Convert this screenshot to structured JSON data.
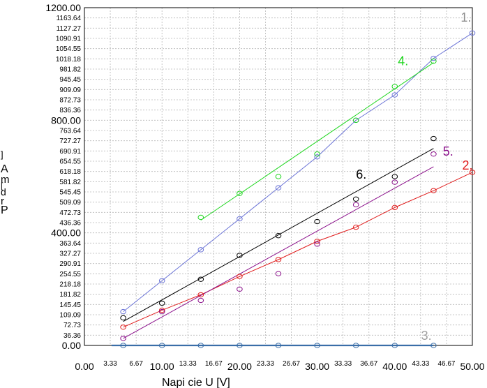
{
  "chart_data": {
    "type": "scatter",
    "title": "",
    "xlabel": "Napi   cie U [V]",
    "ylabel_chars": [
      "]",
      "A",
      "m",
      "[",
      "d",
      "r",
      "P"
    ],
    "xlim": [
      0,
      50
    ],
    "ylim": [
      0,
      1200
    ],
    "x_ticks_major": [
      {
        "value": 0,
        "label": "0.00"
      },
      {
        "value": 10,
        "label": "10.00"
      },
      {
        "value": 20,
        "label": "20.00"
      },
      {
        "value": 30,
        "label": "30.00"
      },
      {
        "value": 40,
        "label": "40.00"
      },
      {
        "value": 50,
        "label": "50.00"
      }
    ],
    "x_ticks_minor": [
      {
        "value": 3.33,
        "label": "3.33"
      },
      {
        "value": 6.67,
        "label": "6.67"
      },
      {
        "value": 13.33,
        "label": "13.33"
      },
      {
        "value": 16.67,
        "label": "16.67"
      },
      {
        "value": 23.33,
        "label": "23.33"
      },
      {
        "value": 26.67,
        "label": "26.67"
      },
      {
        "value": 33.33,
        "label": "33.33"
      },
      {
        "value": 36.67,
        "label": "36.67"
      },
      {
        "value": 43.33,
        "label": "43.33"
      },
      {
        "value": 46.67,
        "label": "46.67"
      }
    ],
    "y_ticks_major": [
      {
        "value": 0,
        "label": "0.00"
      },
      {
        "value": 400,
        "label": "400.00"
      },
      {
        "value": 800,
        "label": "800.00"
      },
      {
        "value": 1200,
        "label": "1200.00"
      }
    ],
    "y_ticks_minor": [
      {
        "value": 36.36,
        "label": "36.36"
      },
      {
        "value": 72.73,
        "label": "72.73"
      },
      {
        "value": 109.09,
        "label": "109.09"
      },
      {
        "value": 145.45,
        "label": "145.45"
      },
      {
        "value": 181.82,
        "label": "181.82"
      },
      {
        "value": 218.18,
        "label": "218.18"
      },
      {
        "value": 254.55,
        "label": "254.55"
      },
      {
        "value": 290.91,
        "label": "290.91"
      },
      {
        "value": 327.27,
        "label": "327.27"
      },
      {
        "value": 363.64,
        "label": "363.64"
      },
      {
        "value": 436.36,
        "label": "436.36"
      },
      {
        "value": 472.73,
        "label": "472.73"
      },
      {
        "value": 509.09,
        "label": "509.09"
      },
      {
        "value": 545.45,
        "label": "545.45"
      },
      {
        "value": 581.82,
        "label": "581.82"
      },
      {
        "value": 618.18,
        "label": "618.18"
      },
      {
        "value": 654.55,
        "label": "654.55"
      },
      {
        "value": 690.91,
        "label": "690.91"
      },
      {
        "value": 727.27,
        "label": "727.27"
      },
      {
        "value": 763.64,
        "label": "763.64"
      },
      {
        "value": 836.36,
        "label": "836.36"
      },
      {
        "value": 872.73,
        "label": "872.73"
      },
      {
        "value": 909.09,
        "label": "909.09"
      },
      {
        "value": 945.45,
        "label": "945.45"
      },
      {
        "value": 981.82,
        "label": "981.82"
      },
      {
        "value": 1018.18,
        "label": "1018.18"
      },
      {
        "value": 1054.55,
        "label": "1054.55"
      },
      {
        "value": 1090.91,
        "label": "1090.91"
      },
      {
        "value": 1127.27,
        "label": "1127.27"
      },
      {
        "value": 1163.64,
        "label": "1163.64"
      }
    ],
    "series": [
      {
        "name": "1.",
        "color": "#6b74d6",
        "label_color": "#8e8e8e",
        "label_at": [
          48.5,
          1150
        ],
        "x": [
          5,
          10,
          15,
          20,
          25,
          30,
          35,
          40,
          45,
          50
        ],
        "y": [
          120,
          230,
          340,
          450,
          560,
          670,
          800,
          890,
          1020,
          1110
        ],
        "fit": "polyline"
      },
      {
        "name": "2.",
        "color": "#e01c1c",
        "label_color": "#e01c1c",
        "label_at": [
          48.7,
          625
        ],
        "x": [
          5,
          10,
          15,
          20,
          25,
          30,
          35,
          40,
          45,
          50
        ],
        "y": [
          65,
          125,
          180,
          245,
          305,
          370,
          420,
          490,
          550,
          615
        ],
        "fit": "polyline"
      },
      {
        "name": "3.",
        "color": "#3a6ea8",
        "label_color": "#a0a0a0",
        "label_at": [
          43.4,
          20
        ],
        "x": [
          5,
          10,
          15,
          20,
          25,
          30,
          35,
          40,
          45
        ],
        "y": [
          0,
          0,
          0,
          0,
          0,
          0,
          0,
          0,
          0
        ],
        "fit": [
          [
            3.5,
            0
          ],
          [
            45,
            0
          ]
        ]
      },
      {
        "name": "4.",
        "color": "#1ed61e",
        "label_color": "#1ed61e",
        "label_at": [
          40.4,
          995
        ],
        "x": [
          15,
          20,
          25,
          30,
          35,
          40,
          45
        ],
        "y": [
          455,
          540,
          600,
          680,
          800,
          920,
          1010
        ],
        "fit": [
          [
            15,
            445
          ],
          [
            45,
            1005
          ]
        ]
      },
      {
        "name": "5.",
        "color": "#8b108b",
        "label_color": "#8b108b",
        "label_at": [
          46.2,
          675
        ],
        "x": [
          5,
          10,
          15,
          20,
          25,
          30,
          35,
          40,
          45
        ],
        "y": [
          25,
          120,
          160,
          200,
          255,
          360,
          500,
          580,
          680
        ],
        "fit": [
          [
            5,
            25
          ],
          [
            45,
            635
          ]
        ]
      },
      {
        "name": "6.",
        "color": "#000000",
        "label_color": "#000000",
        "label_at": [
          35,
          592
        ],
        "x": [
          5,
          10,
          15,
          20,
          25,
          30,
          35,
          40,
          45
        ],
        "y": [
          98,
          150,
          235,
          320,
          390,
          440,
          520,
          600,
          735
        ],
        "fit": [
          [
            5,
            85
          ],
          [
            45,
            700
          ]
        ]
      }
    ]
  }
}
